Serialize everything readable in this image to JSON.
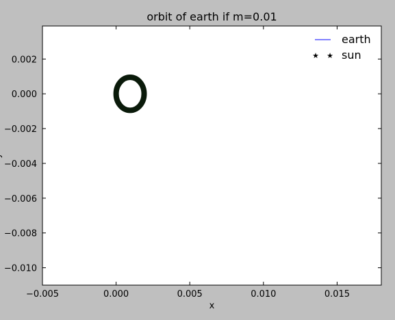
{
  "chart_data": {
    "type": "line",
    "title": "orbit of earth if m=0.01",
    "xlabel": "x",
    "ylabel": "y",
    "xlim": [
      -0.005,
      0.018
    ],
    "ylim": [
      -0.011,
      0.0039
    ],
    "xticks": [
      -0.005,
      0.0,
      0.005,
      0.01,
      0.015
    ],
    "xtick_labels": [
      "−0.005",
      "0.000",
      "0.005",
      "0.010",
      "0.015"
    ],
    "yticks": [
      0.002,
      0.0,
      -0.002,
      -0.004,
      -0.006,
      -0.008,
      -0.01
    ],
    "ytick_labels": [
      "0.002",
      "0.000",
      "−0.002",
      "−0.004",
      "−0.006",
      "−0.008",
      "−0.010"
    ],
    "grid": false,
    "legend_position": "top-right",
    "series": [
      {
        "name": "earth",
        "style": "line",
        "color": "#0000ff",
        "orbit": {
          "center": [
            0.00095,
            0.0
          ],
          "radius_x": 0.00095,
          "radius_y": 0.00095
        }
      },
      {
        "name": "sun",
        "style": "star-marker",
        "color": "#000000",
        "points": []
      }
    ],
    "orbit_trace_color": "#0a1a0a"
  }
}
